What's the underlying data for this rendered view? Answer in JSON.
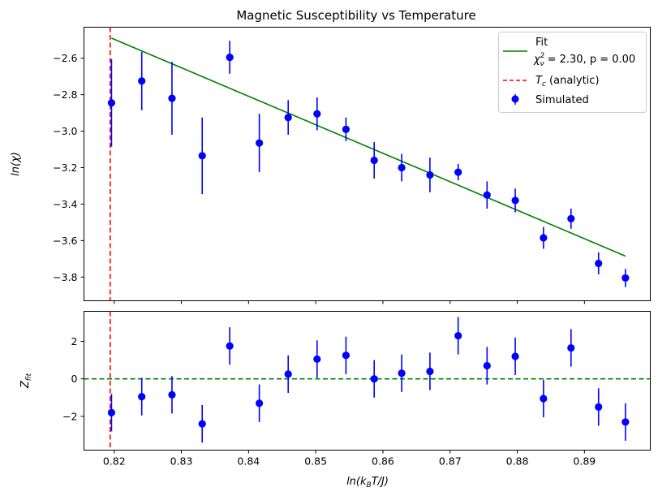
{
  "chart_data": [
    {
      "type": "scatter",
      "title": "Magnetic Susceptibility vs Temperature",
      "xlabel": "",
      "ylabel": "ln(χ)",
      "xlim": [
        0.8155,
        0.8998
      ],
      "ylim": [
        -3.93,
        -2.43
      ],
      "grid": false,
      "legend_position": "top-right",
      "x_ticks": [
        "",
        "",
        "",
        "",
        "",
        "",
        "",
        "",
        ""
      ],
      "y_ticks": [
        "−2.6",
        "−2.8",
        "−3.0",
        "−3.2",
        "−3.4",
        "−3.6",
        "−3.8"
      ],
      "series": [
        {
          "name": "Fit",
          "kind": "line",
          "color": "#008000",
          "x": [
            0.8196,
            0.8961
          ],
          "y": [
            -2.49,
            -3.685
          ]
        },
        {
          "name": "T_c (analytic)",
          "kind": "vline",
          "color": "#ff0000",
          "x": 0.8194
        },
        {
          "name": "Simulated",
          "kind": "errorbar",
          "color": "#0000ff",
          "x": [
            0.8196,
            0.8241,
            0.8286,
            0.8331,
            0.8372,
            0.8416,
            0.8459,
            0.8502,
            0.8545,
            0.8587,
            0.8628,
            0.867,
            0.8712,
            0.8755,
            0.8797,
            0.8839,
            0.888,
            0.8921,
            0.8961
          ],
          "y": [
            -2.845,
            -2.725,
            -2.82,
            -3.135,
            -2.595,
            -3.065,
            -2.925,
            -2.905,
            -2.99,
            -3.16,
            -3.2,
            -3.24,
            -3.225,
            -3.35,
            -3.38,
            -3.585,
            -3.48,
            -3.725,
            -3.805
          ],
          "err": [
            0.24,
            0.16,
            0.2,
            0.21,
            0.09,
            0.16,
            0.095,
            0.09,
            0.065,
            0.1,
            0.075,
            0.095,
            0.045,
            0.075,
            0.065,
            0.06,
            0.055,
            0.06,
            0.05
          ]
        }
      ],
      "legend": {
        "fit_label": "Fit",
        "fit_stats": "χ²ν = 2.30, p = 0.00",
        "fit_stats_chi": "χ",
        "fit_stats_sup": "2",
        "fit_stats_sub": "ν",
        "fit_stats_rest": " = 2.30, p = 0.00",
        "tc_label_main": "T",
        "tc_label_sub": "c",
        "tc_label_rest": " (analytic)",
        "sim_label": "Simulated"
      }
    },
    {
      "type": "scatter",
      "title": "",
      "xlabel": "ln(k_B T/J)",
      "ylabel": "Z_fit",
      "xlim": [
        0.8155,
        0.8998
      ],
      "ylim": [
        -3.8,
        3.6
      ],
      "grid": false,
      "x_ticks": [
        "0.82",
        "0.83",
        "0.84",
        "0.85",
        "0.86",
        "0.87",
        "0.88",
        "0.89"
      ],
      "x_tick_values": [
        0.82,
        0.83,
        0.84,
        0.85,
        0.86,
        0.87,
        0.88,
        0.89
      ],
      "y_ticks": [
        "2",
        "0",
        "−2"
      ],
      "y_tick_values": [
        2,
        0,
        -2
      ],
      "series": [
        {
          "name": "",
          "kind": "hline",
          "color": "#008000",
          "y": 0
        },
        {
          "name": "",
          "kind": "vline",
          "color": "#ff0000",
          "x": 0.8194
        },
        {
          "name": "",
          "kind": "errorbar",
          "color": "#0000ff",
          "x": [
            0.8196,
            0.8241,
            0.8286,
            0.8331,
            0.8372,
            0.8416,
            0.8459,
            0.8502,
            0.8545,
            0.8587,
            0.8628,
            0.867,
            0.8712,
            0.8755,
            0.8797,
            0.8839,
            0.888,
            0.8921,
            0.8961
          ],
          "y": [
            -1.8,
            -0.95,
            -0.85,
            -2.4,
            1.75,
            -1.3,
            0.25,
            1.05,
            1.25,
            0.0,
            0.3,
            0.4,
            2.3,
            0.7,
            1.2,
            -1.05,
            1.65,
            -1.5,
            -2.3
          ],
          "err": [
            1.0,
            1.0,
            1.0,
            1.0,
            1.0,
            1.0,
            1.0,
            1.0,
            1.0,
            1.0,
            1.0,
            1.0,
            1.0,
            1.0,
            1.0,
            1.0,
            1.0,
            1.0,
            1.0
          ]
        }
      ]
    }
  ],
  "labels": {
    "title": "Magnetic Susceptibility vs Temperature",
    "top_ylabel_main": "ln(",
    "top_ylabel_chi": "χ",
    "top_ylabel_end": ")",
    "bottom_ylabel_main": "Z",
    "bottom_ylabel_sub": "fit",
    "xlabel_main": "ln(k",
    "xlabel_sub": "B",
    "xlabel_rest": "T/J)"
  }
}
